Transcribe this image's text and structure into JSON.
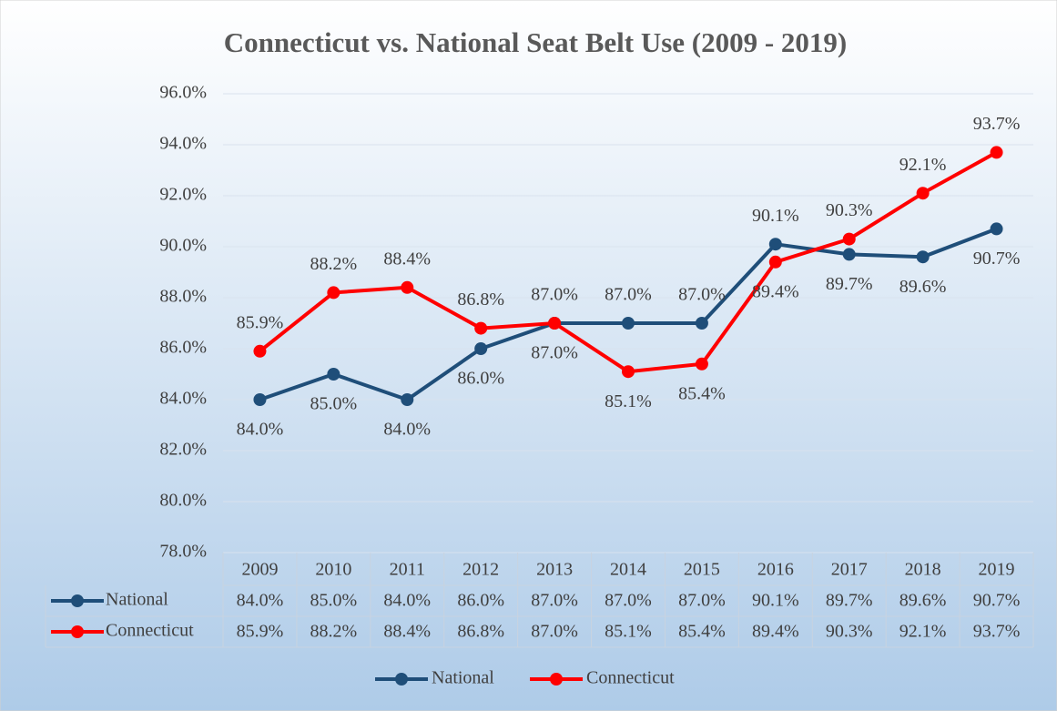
{
  "chart_data": {
    "type": "line",
    "title": "Connecticut vs. National Seat Belt Use (2009 - 2019)",
    "categories": [
      "2009",
      "2010",
      "2011",
      "2012",
      "2013",
      "2014",
      "2015",
      "2016",
      "2017",
      "2018",
      "2019"
    ],
    "series": [
      {
        "name": "National",
        "color": "#1f4e79",
        "values": [
          84.0,
          85.0,
          84.0,
          86.0,
          87.0,
          87.0,
          87.0,
          90.1,
          89.7,
          89.6,
          90.7
        ],
        "value_labels": [
          "84.0%",
          "85.0%",
          "84.0%",
          "86.0%",
          "87.0%",
          "87.0%",
          "87.0%",
          "90.1%",
          "89.7%",
          "89.6%",
          "90.7%"
        ]
      },
      {
        "name": "Connecticut",
        "color": "#ff0000",
        "values": [
          85.9,
          88.2,
          88.4,
          86.8,
          87.0,
          85.1,
          85.4,
          89.4,
          90.3,
          92.1,
          93.7
        ],
        "value_labels": [
          "85.9%",
          "88.2%",
          "88.4%",
          "86.8%",
          "87.0%",
          "85.1%",
          "85.4%",
          "89.4%",
          "90.3%",
          "92.1%",
          "93.7%"
        ]
      }
    ],
    "ylim": [
      78,
      96
    ],
    "yticks": [
      {
        "value": 78,
        "label": "78.0%"
      },
      {
        "value": 80,
        "label": "80.0%"
      },
      {
        "value": 82,
        "label": "82.0%"
      },
      {
        "value": 84,
        "label": "84.0%"
      },
      {
        "value": 86,
        "label": "86.0%"
      },
      {
        "value": 88,
        "label": "88.0%"
      },
      {
        "value": 90,
        "label": "90.0%"
      },
      {
        "value": 92,
        "label": "92.0%"
      },
      {
        "value": 94,
        "label": "94.0%"
      },
      {
        "value": 96,
        "label": "96.0%"
      }
    ],
    "grid": true,
    "legend": "bottom",
    "data_table": true
  }
}
